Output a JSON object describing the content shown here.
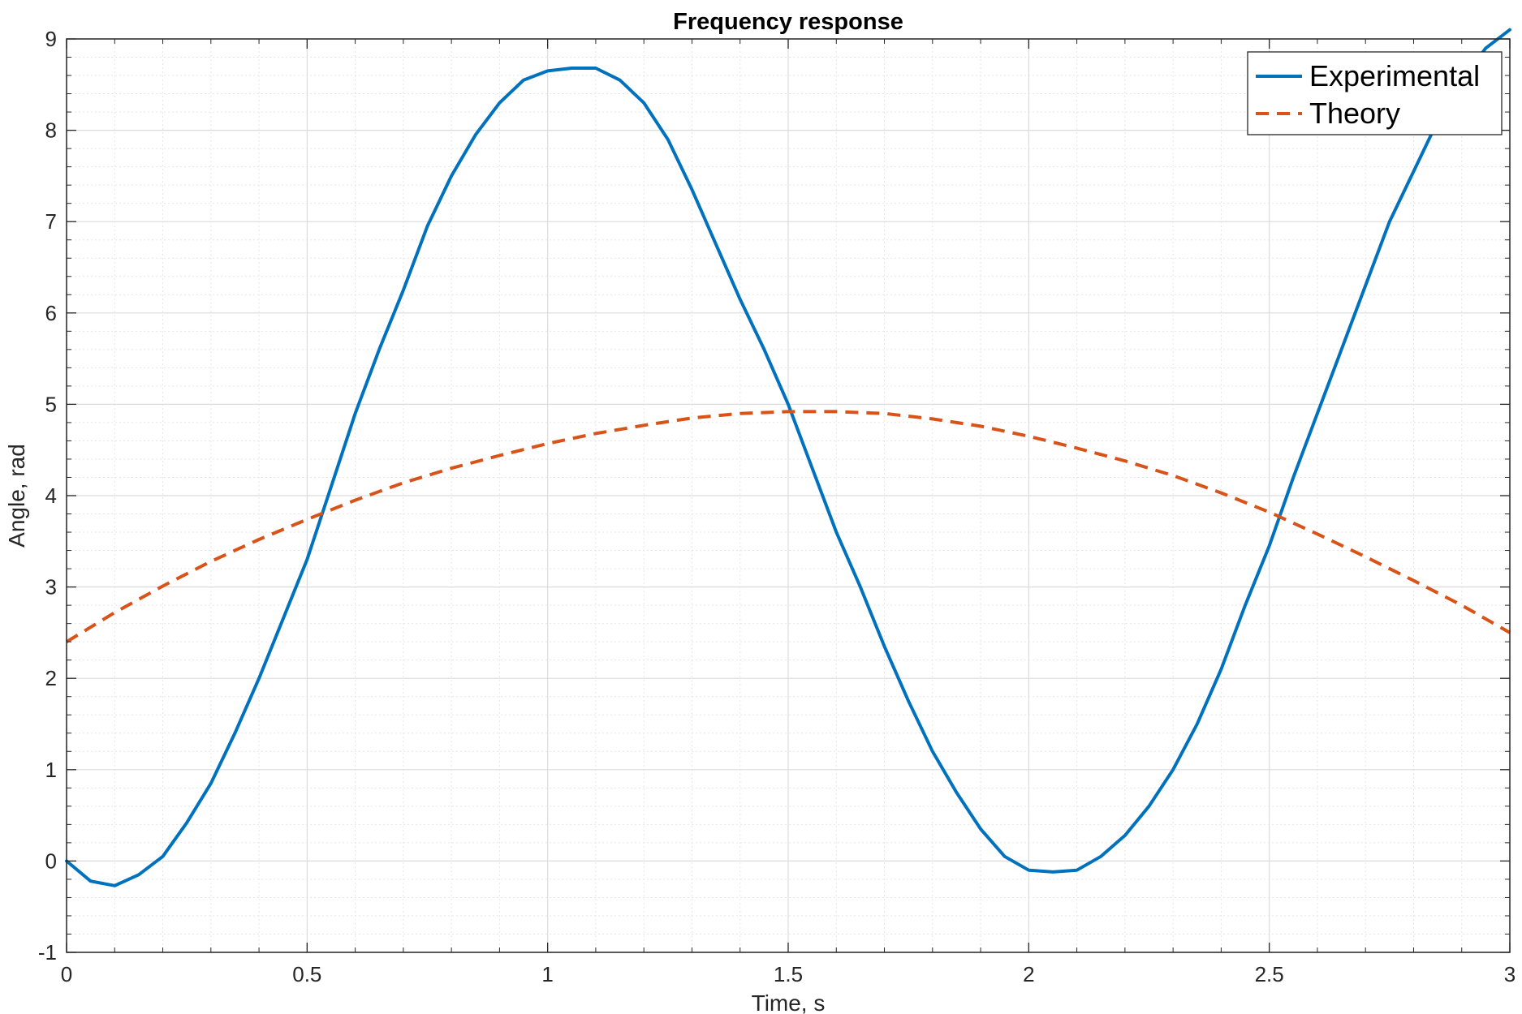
{
  "chart_data": {
    "type": "line",
    "title": "Frequency response",
    "xlabel": "Time, s",
    "ylabel": "Angle, rad",
    "xlim": [
      0,
      3
    ],
    "ylim": [
      -1,
      9
    ],
    "xticks": [
      0,
      0.5,
      1,
      1.5,
      2,
      2.5,
      3
    ],
    "xtick_labels": [
      "0",
      "0.5",
      "1",
      "1.5",
      "2",
      "2.5",
      "3"
    ],
    "yticks": [
      -1,
      0,
      1,
      2,
      3,
      4,
      5,
      6,
      7,
      8,
      9
    ],
    "ytick_labels": [
      "-1",
      "0",
      "1",
      "2",
      "3",
      "4",
      "5",
      "6",
      "7",
      "8",
      "9"
    ],
    "grid": true,
    "minor_grid": true,
    "legend_position": "top-right",
    "series": [
      {
        "name": "Experimental",
        "style": "solid",
        "color": "#0072BD",
        "x": [
          0,
          0.05,
          0.1,
          0.15,
          0.2,
          0.25,
          0.3,
          0.35,
          0.4,
          0.45,
          0.5,
          0.55,
          0.6,
          0.65,
          0.7,
          0.75,
          0.8,
          0.85,
          0.9,
          0.95,
          1.0,
          1.05,
          1.1,
          1.15,
          1.2,
          1.25,
          1.3,
          1.35,
          1.4,
          1.45,
          1.5,
          1.55,
          1.6,
          1.65,
          1.7,
          1.75,
          1.8,
          1.85,
          1.9,
          1.95,
          2.0,
          2.05,
          2.1,
          2.15,
          2.2,
          2.25,
          2.3,
          2.35,
          2.4,
          2.45,
          2.5,
          2.55,
          2.6,
          2.65,
          2.7,
          2.75,
          2.8,
          2.85,
          2.9,
          2.95,
          3.0
        ],
        "y": [
          0,
          -0.22,
          -0.27,
          -0.15,
          0.05,
          0.42,
          0.85,
          1.4,
          2.0,
          2.65,
          3.3,
          4.1,
          4.9,
          5.6,
          6.25,
          6.95,
          7.5,
          7.95,
          8.3,
          8.55,
          8.65,
          8.68,
          8.68,
          8.55,
          8.3,
          7.9,
          7.35,
          6.75,
          6.15,
          5.6,
          5.0,
          4.3,
          3.6,
          3.0,
          2.35,
          1.75,
          1.2,
          0.75,
          0.35,
          0.05,
          -0.1,
          -0.12,
          -0.1,
          0.05,
          0.28,
          0.6,
          1.0,
          1.5,
          2.1,
          2.8,
          3.45,
          4.2,
          4.9,
          5.6,
          6.3,
          7.0,
          7.55,
          8.1,
          8.55,
          8.9,
          9.1
        ]
      },
      {
        "name": "Theory",
        "style": "dashed",
        "color": "#D95319",
        "x": [
          0,
          0.1,
          0.2,
          0.3,
          0.4,
          0.5,
          0.6,
          0.7,
          0.8,
          0.9,
          1.0,
          1.1,
          1.2,
          1.3,
          1.4,
          1.5,
          1.6,
          1.7,
          1.8,
          1.9,
          2.0,
          2.1,
          2.2,
          2.3,
          2.4,
          2.5,
          2.6,
          2.7,
          2.8,
          2.9,
          3.0
        ],
        "y": [
          2.4,
          2.72,
          3.01,
          3.28,
          3.52,
          3.74,
          3.95,
          4.14,
          4.3,
          4.44,
          4.57,
          4.68,
          4.77,
          4.85,
          4.9,
          4.92,
          4.92,
          4.9,
          4.84,
          4.76,
          4.65,
          4.52,
          4.38,
          4.22,
          4.03,
          3.82,
          3.58,
          3.33,
          3.07,
          2.8,
          2.5
        ]
      }
    ]
  }
}
